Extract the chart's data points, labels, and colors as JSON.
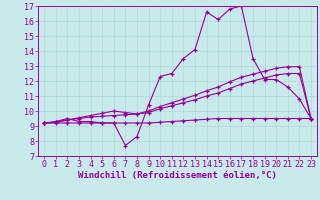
{
  "x_values": [
    0,
    1,
    2,
    3,
    4,
    5,
    6,
    7,
    8,
    9,
    10,
    11,
    12,
    13,
    14,
    15,
    16,
    17,
    18,
    19,
    20,
    21,
    22,
    23
  ],
  "main_line": [
    9.2,
    9.3,
    9.5,
    9.3,
    9.3,
    9.2,
    9.2,
    7.7,
    8.3,
    10.4,
    12.3,
    12.5,
    13.5,
    14.1,
    16.6,
    16.1,
    16.8,
    17.0,
    13.5,
    12.1,
    12.1,
    11.6,
    10.8,
    9.5
  ],
  "line2": [
    9.2,
    9.25,
    9.4,
    9.5,
    9.6,
    9.65,
    9.7,
    9.75,
    9.8,
    9.9,
    10.15,
    10.35,
    10.55,
    10.75,
    11.0,
    11.2,
    11.5,
    11.8,
    12.0,
    12.2,
    12.4,
    12.5,
    12.5,
    9.5
  ],
  "line3": [
    9.2,
    9.25,
    9.4,
    9.55,
    9.7,
    9.85,
    10.0,
    9.9,
    9.8,
    10.0,
    10.3,
    10.55,
    10.8,
    11.05,
    11.35,
    11.6,
    11.95,
    12.25,
    12.45,
    12.65,
    12.85,
    12.95,
    12.95,
    9.5
  ],
  "line4": [
    9.2,
    9.2,
    9.2,
    9.2,
    9.2,
    9.2,
    9.2,
    9.2,
    9.2,
    9.2,
    9.25,
    9.3,
    9.35,
    9.4,
    9.45,
    9.5,
    9.5,
    9.5,
    9.5,
    9.5,
    9.5,
    9.5,
    9.5,
    9.5
  ],
  "color": "#990099",
  "bg_color": "#c8eaea",
  "grid_color": "#b0d8d8",
  "xlabel": "Windchill (Refroidissement éolien,°C)",
  "ylim": [
    7,
    17
  ],
  "xlim": [
    -0.5,
    23.5
  ],
  "yticks": [
    7,
    8,
    9,
    10,
    11,
    12,
    13,
    14,
    15,
    16,
    17
  ],
  "xticks": [
    0,
    1,
    2,
    3,
    4,
    5,
    6,
    7,
    8,
    9,
    10,
    11,
    12,
    13,
    14,
    15,
    16,
    17,
    18,
    19,
    20,
    21,
    22,
    23
  ],
  "xlabel_fontsize": 6.5,
  "tick_fontsize": 6,
  "marker": "+"
}
